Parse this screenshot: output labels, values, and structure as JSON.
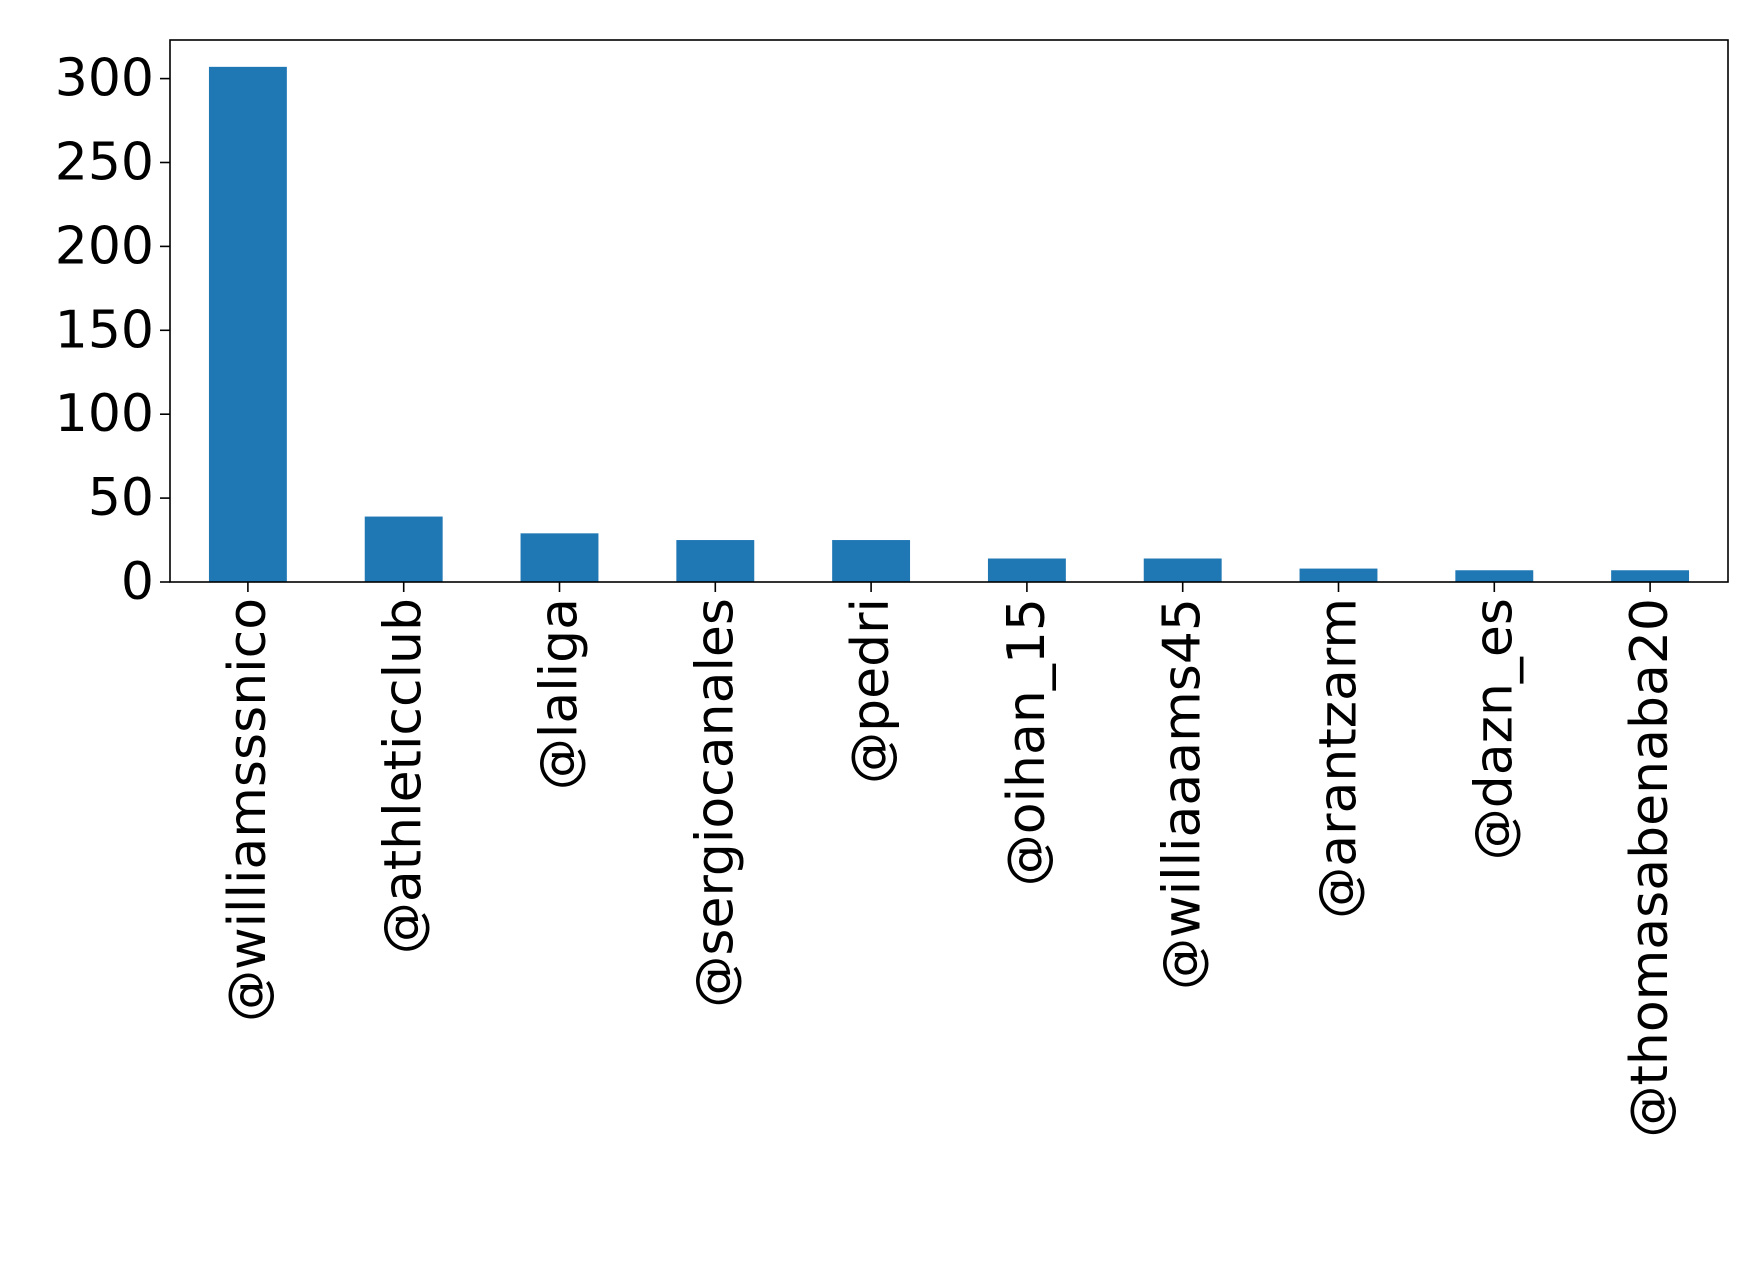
{
  "chart_data": {
    "type": "bar",
    "title": "",
    "xlabel": "",
    "ylabel": "",
    "categories": [
      "@williamsssnico",
      "@athleticclub",
      "@laliga",
      "@sergiocanales",
      "@pedri",
      "@oihan_15",
      "@williaaams45",
      "@arantzarm",
      "@dazn_es",
      "@thomasabenaba20"
    ],
    "values": [
      307,
      39,
      29,
      25,
      25,
      14,
      14,
      8,
      7,
      7
    ],
    "ylim": [
      0,
      323
    ],
    "yticks": [
      0,
      50,
      100,
      150,
      200,
      250,
      300
    ],
    "grid": false,
    "legend": "none",
    "colors": {
      "bar": "#1f77b4",
      "axis": "#000000",
      "background": "#ffffff"
    }
  }
}
